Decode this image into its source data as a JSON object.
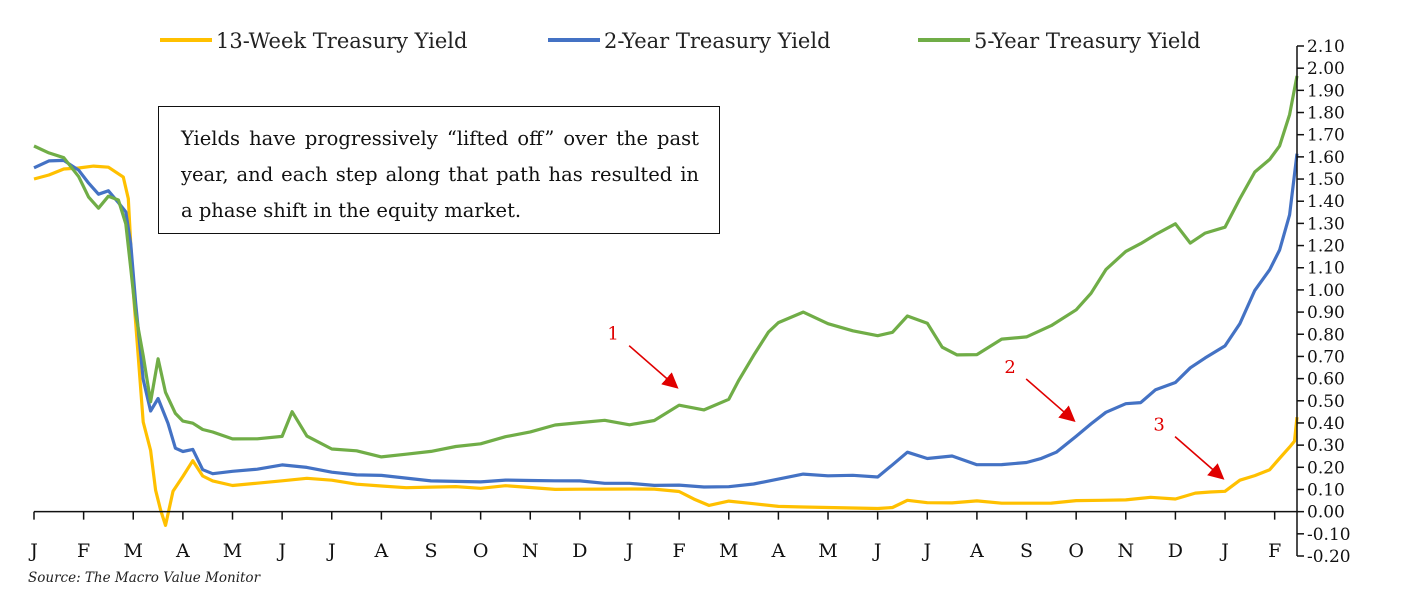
{
  "chart_data": {
    "type": "line",
    "legend": {
      "position": "top",
      "entries": [
        {
          "name": "13-Week Treasury Yield",
          "color": "#FFC000"
        },
        {
          "name": "2-Year Treasury Yield",
          "color": "#4472C4"
        },
        {
          "name": "5-Year Treasury Yield",
          "color": "#70AD47"
        }
      ]
    },
    "x_tick_labels": [
      "J",
      "F",
      "M",
      "A",
      "M",
      "J",
      "J",
      "A",
      "S",
      "O",
      "N",
      "D",
      "J",
      "F",
      "M",
      "A",
      "M",
      "J",
      "J",
      "A",
      "S",
      "O",
      "N",
      "D",
      "J",
      "F"
    ],
    "y_axis": {
      "position": "right",
      "min": -0.2,
      "max": 2.1,
      "step": 0.1,
      "grid": false,
      "tick_labels": [
        "2.10",
        "2.00",
        "1.90",
        "1.80",
        "1.70",
        "1.60",
        "1.50",
        "1.40",
        "1.30",
        "1.20",
        "1.10",
        "1.00",
        "0.90",
        "0.80",
        "0.70",
        "0.60",
        "0.50",
        "0.40",
        "0.30",
        "0.20",
        "0.10",
        "0.00",
        "-0.10",
        "-0.20"
      ]
    },
    "series": [
      {
        "name": "13-Week Treasury Yield",
        "color": "#FFC000",
        "points": [
          [
            0,
            1.5
          ],
          [
            0.3,
            1.53
          ],
          [
            0.6,
            1.55
          ],
          [
            0.9,
            1.54
          ],
          [
            1.2,
            1.55
          ],
          [
            1.5,
            1.56
          ],
          [
            1.8,
            1.52
          ],
          [
            1.9,
            1.4
          ],
          [
            2.0,
            1.0
          ],
          [
            2.1,
            0.7
          ],
          [
            2.2,
            0.4
          ],
          [
            2.35,
            0.28
          ],
          [
            2.45,
            0.1
          ],
          [
            2.55,
            0.0
          ],
          [
            2.65,
            -0.05
          ],
          [
            2.8,
            0.1
          ],
          [
            3.0,
            0.17
          ],
          [
            3.2,
            0.23
          ],
          [
            3.4,
            0.15
          ],
          [
            3.6,
            0.13
          ],
          [
            4,
            0.13
          ],
          [
            4.5,
            0.14
          ],
          [
            5,
            0.15
          ],
          [
            5.5,
            0.16
          ],
          [
            6,
            0.15
          ],
          [
            6.5,
            0.13
          ],
          [
            7,
            0.12
          ],
          [
            7.5,
            0.11
          ],
          [
            8,
            0.11
          ],
          [
            8.5,
            0.11
          ],
          [
            9,
            0.1
          ],
          [
            9.5,
            0.11
          ],
          [
            10,
            0.1
          ],
          [
            10.5,
            0.09
          ],
          [
            11,
            0.09
          ],
          [
            11.5,
            0.09
          ],
          [
            12,
            0.09
          ],
          [
            12.5,
            0.09
          ],
          [
            13,
            0.08
          ],
          [
            13.3,
            0.06
          ],
          [
            13.6,
            0.04
          ],
          [
            14,
            0.04
          ],
          [
            14.5,
            0.03
          ],
          [
            15,
            0.02
          ],
          [
            15.5,
            0.02
          ],
          [
            16,
            0.02
          ],
          [
            16.5,
            0.02
          ],
          [
            17,
            0.02
          ],
          [
            17.3,
            0.03
          ],
          [
            17.6,
            0.05
          ],
          [
            18,
            0.05
          ],
          [
            18.5,
            0.05
          ],
          [
            19,
            0.06
          ],
          [
            19.5,
            0.05
          ],
          [
            20,
            0.05
          ],
          [
            20.5,
            0.05
          ],
          [
            21,
            0.06
          ],
          [
            21.5,
            0.06
          ],
          [
            22,
            0.06
          ],
          [
            22.5,
            0.07
          ],
          [
            23,
            0.06
          ],
          [
            23.4,
            0.09
          ],
          [
            23.7,
            0.1
          ],
          [
            24,
            0.09
          ],
          [
            24.3,
            0.13
          ],
          [
            24.6,
            0.16
          ],
          [
            24.9,
            0.2
          ],
          [
            25.1,
            0.24
          ],
          [
            25.3,
            0.28
          ],
          [
            25.4,
            0.33
          ],
          [
            25.45,
            0.42
          ]
        ]
      },
      {
        "name": "2-Year Treasury Yield",
        "color": "#4472C4",
        "points": [
          [
            0,
            1.55
          ],
          [
            0.3,
            1.57
          ],
          [
            0.6,
            1.58
          ],
          [
            0.9,
            1.55
          ],
          [
            1.1,
            1.48
          ],
          [
            1.3,
            1.42
          ],
          [
            1.5,
            1.44
          ],
          [
            1.7,
            1.4
          ],
          [
            1.85,
            1.35
          ],
          [
            1.95,
            1.2
          ],
          [
            2.05,
            0.95
          ],
          [
            2.2,
            0.6
          ],
          [
            2.35,
            0.45
          ],
          [
            2.5,
            0.5
          ],
          [
            2.7,
            0.4
          ],
          [
            2.85,
            0.28
          ],
          [
            3.0,
            0.26
          ],
          [
            3.2,
            0.28
          ],
          [
            3.4,
            0.2
          ],
          [
            3.6,
            0.18
          ],
          [
            4,
            0.17
          ],
          [
            4.5,
            0.18
          ],
          [
            5,
            0.2
          ],
          [
            5.5,
            0.19
          ],
          [
            6,
            0.17
          ],
          [
            6.5,
            0.16
          ],
          [
            7,
            0.16
          ],
          [
            7.5,
            0.15
          ],
          [
            8,
            0.14
          ],
          [
            8.5,
            0.14
          ],
          [
            9,
            0.14
          ],
          [
            9.5,
            0.15
          ],
          [
            10,
            0.15
          ],
          [
            10.5,
            0.15
          ],
          [
            11,
            0.15
          ],
          [
            11.5,
            0.14
          ],
          [
            12,
            0.14
          ],
          [
            12.5,
            0.13
          ],
          [
            13,
            0.13
          ],
          [
            13.5,
            0.12
          ],
          [
            14,
            0.12
          ],
          [
            14.5,
            0.13
          ],
          [
            15,
            0.15
          ],
          [
            15.5,
            0.17
          ],
          [
            16,
            0.16
          ],
          [
            16.5,
            0.16
          ],
          [
            17,
            0.15
          ],
          [
            17.3,
            0.2
          ],
          [
            17.6,
            0.27
          ],
          [
            18,
            0.23
          ],
          [
            18.5,
            0.24
          ],
          [
            19,
            0.2
          ],
          [
            19.5,
            0.2
          ],
          [
            20,
            0.21
          ],
          [
            20.3,
            0.24
          ],
          [
            20.6,
            0.28
          ],
          [
            21,
            0.33
          ],
          [
            21.3,
            0.4
          ],
          [
            21.6,
            0.46
          ],
          [
            22,
            0.48
          ],
          [
            22.3,
            0.5
          ],
          [
            22.6,
            0.56
          ],
          [
            23,
            0.58
          ],
          [
            23.3,
            0.66
          ],
          [
            23.6,
            0.7
          ],
          [
            24,
            0.75
          ],
          [
            24.3,
            0.86
          ],
          [
            24.6,
            1.0
          ],
          [
            24.9,
            1.08
          ],
          [
            25.1,
            1.18
          ],
          [
            25.3,
            1.35
          ],
          [
            25.45,
            1.62
          ]
        ]
      },
      {
        "name": "5-Year Treasury Yield",
        "color": "#70AD47",
        "points": [
          [
            0,
            1.65
          ],
          [
            0.3,
            1.63
          ],
          [
            0.6,
            1.6
          ],
          [
            0.9,
            1.5
          ],
          [
            1.1,
            1.42
          ],
          [
            1.3,
            1.38
          ],
          [
            1.5,
            1.43
          ],
          [
            1.7,
            1.4
          ],
          [
            1.85,
            1.3
          ],
          [
            1.95,
            1.1
          ],
          [
            2.05,
            0.88
          ],
          [
            2.2,
            0.7
          ],
          [
            2.35,
            0.5
          ],
          [
            2.5,
            0.7
          ],
          [
            2.65,
            0.55
          ],
          [
            2.85,
            0.45
          ],
          [
            3.0,
            0.42
          ],
          [
            3.2,
            0.4
          ],
          [
            3.4,
            0.36
          ],
          [
            3.6,
            0.35
          ],
          [
            4,
            0.34
          ],
          [
            4.5,
            0.34
          ],
          [
            5,
            0.35
          ],
          [
            5.2,
            0.46
          ],
          [
            5.5,
            0.35
          ],
          [
            6,
            0.29
          ],
          [
            6.5,
            0.28
          ],
          [
            7,
            0.25
          ],
          [
            7.5,
            0.26
          ],
          [
            8,
            0.27
          ],
          [
            8.5,
            0.29
          ],
          [
            9,
            0.3
          ],
          [
            9.5,
            0.33
          ],
          [
            10,
            0.35
          ],
          [
            10.5,
            0.38
          ],
          [
            11,
            0.39
          ],
          [
            11.5,
            0.4
          ],
          [
            12,
            0.38
          ],
          [
            12.5,
            0.4
          ],
          [
            13,
            0.47
          ],
          [
            13.5,
            0.45
          ],
          [
            14,
            0.5
          ],
          [
            14.2,
            0.58
          ],
          [
            14.5,
            0.7
          ],
          [
            14.8,
            0.82
          ],
          [
            15,
            0.85
          ],
          [
            15.5,
            0.9
          ],
          [
            16,
            0.85
          ],
          [
            16.5,
            0.82
          ],
          [
            17,
            0.8
          ],
          [
            17.3,
            0.82
          ],
          [
            17.6,
            0.88
          ],
          [
            18,
            0.86
          ],
          [
            18.3,
            0.75
          ],
          [
            18.6,
            0.7
          ],
          [
            19,
            0.72
          ],
          [
            19.5,
            0.79
          ],
          [
            20,
            0.8
          ],
          [
            20.5,
            0.85
          ],
          [
            21,
            0.92
          ],
          [
            21.3,
            0.98
          ],
          [
            21.6,
            1.08
          ],
          [
            22,
            1.18
          ],
          [
            22.3,
            1.2
          ],
          [
            22.6,
            1.24
          ],
          [
            23,
            1.3
          ],
          [
            23.3,
            1.2
          ],
          [
            23.6,
            1.25
          ],
          [
            24,
            1.28
          ],
          [
            24.3,
            1.4
          ],
          [
            24.6,
            1.53
          ],
          [
            24.9,
            1.6
          ],
          [
            25.1,
            1.65
          ],
          [
            25.3,
            1.78
          ],
          [
            25.45,
            1.96
          ]
        ]
      }
    ],
    "annotations": [
      {
        "label": "1",
        "series": "5-Year Treasury Yield",
        "x": 13.0,
        "y": 0.55
      },
      {
        "label": "2",
        "series": "2-Year Treasury Yield",
        "x": 21.0,
        "y": 0.4
      },
      {
        "label": "3",
        "series": "13-Week Treasury Yield",
        "x": 24.0,
        "y": 0.14
      }
    ]
  },
  "callout_text": "Yields have progressively “lifted off” over the past year, and each step along that path has resulted in a phase shift in the equity market.",
  "source_text": "Source: The Macro Value Monitor"
}
